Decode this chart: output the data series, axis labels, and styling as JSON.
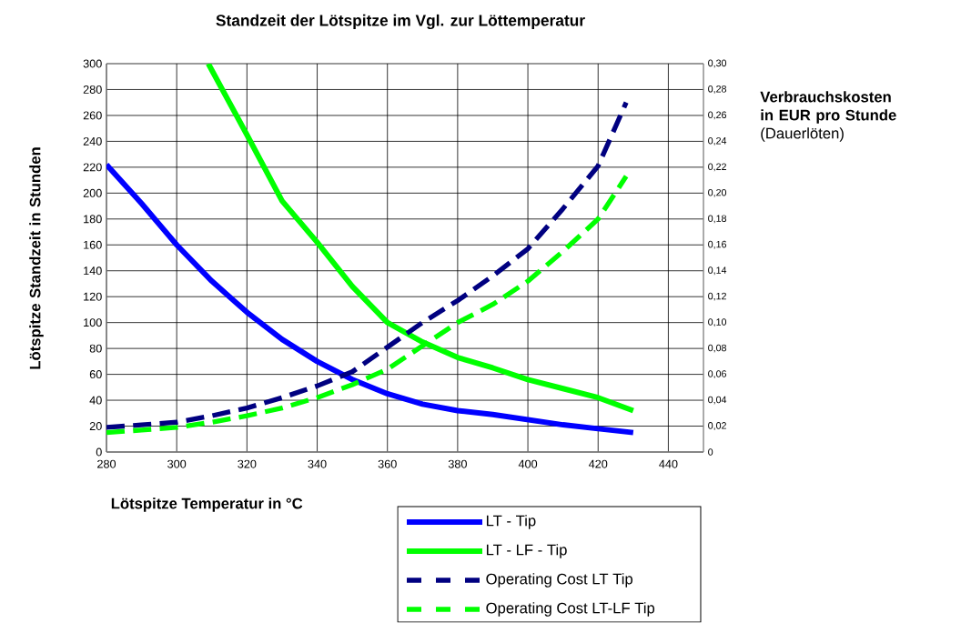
{
  "chart_data": {
    "type": "line",
    "title": "Standzeit der Lötspitze im Vgl. zur Löttemperatur",
    "xlabel": "Lötspitze Temperatur in °C",
    "ylabel": "Lötspitze Standzeit in Stunden",
    "y2label": "**Verbrauchskosten in EUR pro Stunde** (Dauerlöten)",
    "xlim": [
      280,
      450
    ],
    "xticks": [
      280,
      300,
      320,
      340,
      360,
      380,
      400,
      420,
      440
    ],
    "ylim": [
      0,
      300
    ],
    "yticks": [
      0,
      20,
      40,
      60,
      80,
      100,
      120,
      140,
      160,
      180,
      200,
      220,
      240,
      260,
      280,
      300
    ],
    "y2lim": [
      0,
      0.3
    ],
    "y2ticks": [
      0,
      {
        "value": 0.02,
        "label": "0,02"
      },
      {
        "value": 0.04,
        "label": "0,04"
      },
      {
        "value": 0.06,
        "label": "0,06"
      },
      {
        "value": 0.08,
        "label": "0,08"
      },
      {
        "value": 0.1,
        "label": "0,10"
      },
      {
        "value": 0.12,
        "label": "0,12"
      },
      {
        "value": 0.14,
        "label": "0,14"
      },
      {
        "value": 0.16,
        "label": "0,16"
      },
      {
        "value": 0.18,
        "label": "0,18"
      },
      {
        "value": 0.2,
        "label": "0,20"
      },
      {
        "value": 0.22,
        "label": "0,22"
      },
      {
        "value": 0.24,
        "label": "0,24"
      },
      {
        "value": 0.26,
        "label": "0,26"
      },
      {
        "value": 0.28,
        "label": "0,28"
      },
      {
        "value": 0.3,
        "label": "0,30"
      }
    ],
    "grid": true,
    "legend": "bottom right",
    "series": [
      {
        "name": "LT - Tip",
        "color": "#0000ff",
        "line_style": "solid",
        "x": [
          280,
          290,
          300,
          310,
          320,
          330,
          340,
          350,
          360,
          370,
          380,
          390,
          400,
          410,
          420,
          430
        ],
        "values": [
          222,
          192,
          160,
          132,
          108,
          87,
          70,
          56,
          45,
          37,
          32,
          29,
          25,
          21,
          18,
          15
        ]
      },
      {
        "name": "LT - LF - Tip",
        "color": "#00ff00",
        "line_style": "solid",
        "x": [
          309,
          320,
          330,
          340,
          350,
          360,
          370,
          380,
          390,
          400,
          410,
          420,
          430
        ],
        "values": [
          300,
          245,
          194,
          162,
          128,
          100,
          85,
          73,
          65,
          56,
          49,
          42,
          32
        ]
      },
      {
        "name": "Operating Cost LT Tip",
        "color": "#000080",
        "line_style": "dashed",
        "axis": "y2",
        "x": [
          280,
          290,
          300,
          310,
          320,
          330,
          340,
          350,
          360,
          370,
          380,
          390,
          400,
          410,
          420,
          428
        ],
        "values": [
          0.019,
          0.021,
          0.023,
          0.028,
          0.034,
          0.042,
          0.051,
          0.062,
          0.081,
          0.1,
          0.117,
          0.136,
          0.157,
          0.188,
          0.221,
          0.27
        ]
      },
      {
        "name": "Operating Cost LT-LF Tip",
        "color": "#00ff00",
        "line_style": "dashed",
        "axis": "y2",
        "x": [
          280,
          290,
          300,
          310,
          320,
          330,
          340,
          350,
          360,
          370,
          380,
          390,
          400,
          410,
          420,
          428
        ],
        "values": [
          0.015,
          0.017,
          0.019,
          0.023,
          0.028,
          0.034,
          0.042,
          0.052,
          0.064,
          0.082,
          0.1,
          0.114,
          0.132,
          0.155,
          0.18,
          0.213
        ]
      }
    ]
  }
}
